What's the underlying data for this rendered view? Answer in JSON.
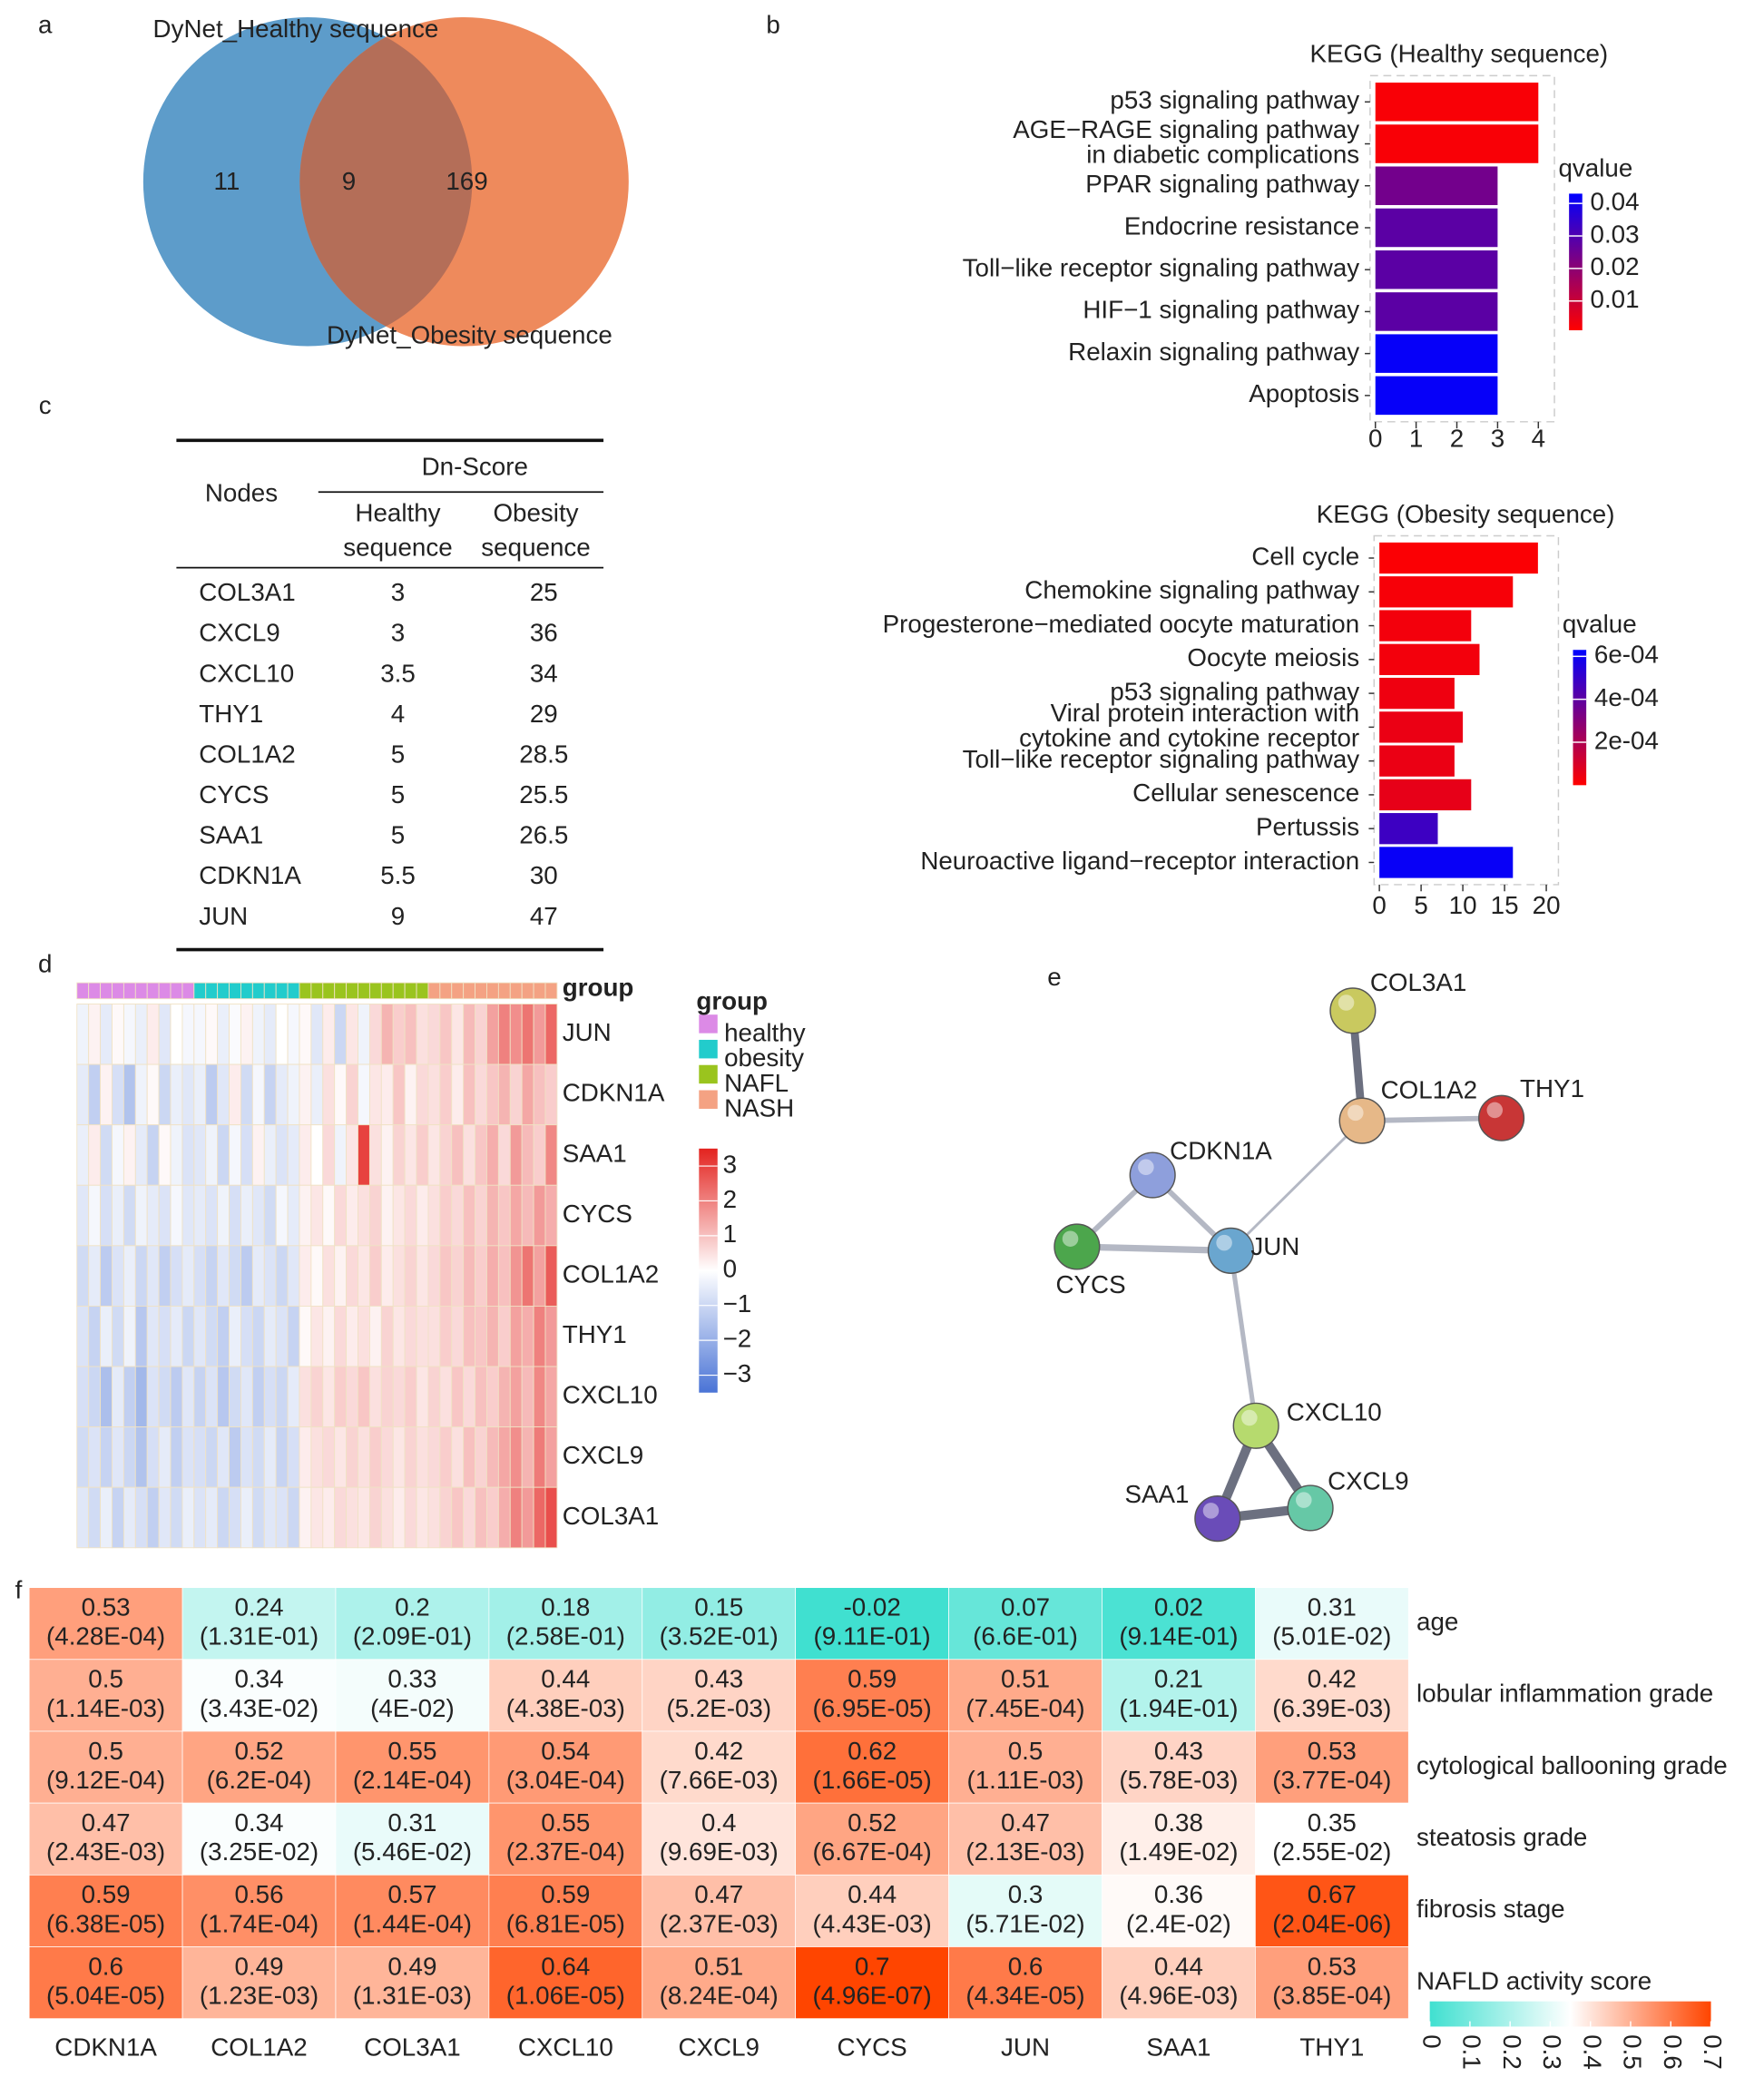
{
  "panel_labels": [
    "a",
    "b",
    "c",
    "d",
    "e",
    "f"
  ],
  "venn": {
    "sets": [
      {
        "name": "DyNet_Healthy sequence",
        "color": "#5d9cca"
      },
      {
        "name": "DyNet_Obesity sequence",
        "color": "#ee8a5c"
      }
    ],
    "overlap_color": "#b46e58",
    "only_first": 11,
    "both": 9,
    "only_second": 169
  },
  "table": {
    "header": {
      "nodes": "Nodes",
      "group": "Dn-Score",
      "columns": [
        [
          "Healthy",
          "sequence"
        ],
        [
          "Obesity",
          "sequence"
        ]
      ]
    },
    "rows": [
      [
        "COL3A1",
        3,
        25
      ],
      [
        "CXCL9",
        3,
        36
      ],
      [
        "CXCL10",
        3.5,
        34
      ],
      [
        "THY1",
        4,
        29
      ],
      [
        "COL1A2",
        5,
        28.5
      ],
      [
        "CYCS",
        5,
        25.5
      ],
      [
        "SAA1",
        5,
        26.5
      ],
      [
        "CDKN1A",
        5.5,
        30
      ],
      [
        "JUN",
        9,
        47
      ]
    ]
  },
  "network": {
    "nodes": [
      {
        "label": "COL3A1",
        "color": "#c9c95f"
      },
      {
        "label": "COL1A2",
        "color": "#e6b888"
      },
      {
        "label": "THY1",
        "color": "#c83636"
      },
      {
        "label": "CDKN1A",
        "color": "#8e9fdc"
      },
      {
        "label": "CYCS",
        "color": "#4ca64c"
      },
      {
        "label": "JUN",
        "color": "#6aa6cf"
      },
      {
        "label": "CXCL10",
        "color": "#b6da6e"
      },
      {
        "label": "SAA1",
        "color": "#6a4cb8"
      },
      {
        "label": "CXCL9",
        "color": "#66c8a6"
      }
    ]
  },
  "chart_data": [
    {
      "type": "bar",
      "title": "KEGG (Healthy sequence)",
      "categories": [
        "p53 signaling pathway",
        [
          "AGE−RAGE signaling pathway",
          "in diabetic complications"
        ],
        "PPAR signaling pathway",
        "Endocrine resistance",
        "Toll−like receptor signaling pathway",
        "HIF−1 signaling pathway",
        "Relaxin signaling pathway",
        "Apoptosis"
      ],
      "values": [
        4,
        4,
        3,
        3,
        3,
        3,
        3,
        3
      ],
      "qvalues": [
        0.002,
        0.002,
        0.024,
        0.028,
        0.028,
        0.028,
        0.042,
        0.042
      ],
      "xlim": [
        0,
        4.2
      ],
      "xticks": [
        0,
        1,
        2,
        3,
        4
      ],
      "colorbar": {
        "title": "qvalue",
        "lim": [
          0.001,
          0.043
        ],
        "ticks": [
          0.04,
          0.03,
          0.02,
          0.01
        ],
        "colors": [
          "#ff0000",
          "#0000ff"
        ]
      }
    },
    {
      "type": "bar",
      "title": "KEGG (Obesity sequence)",
      "categories": [
        "Cell cycle",
        "Chemokine signaling pathway",
        "Progesterone−mediated oocyte maturation",
        "Oocyte meiosis",
        "p53 signaling pathway",
        [
          "Viral protein interaction with",
          "cytokine and cytokine receptor"
        ],
        "Toll−like receptor signaling pathway",
        "Cellular senescence",
        "Pertussis",
        "Neuroactive ligand−receptor interaction"
      ],
      "values": [
        19,
        16,
        11,
        12,
        9,
        10,
        9,
        11,
        7,
        16
      ],
      "qvalues": [
        1e-05,
        2e-05,
        3e-05,
        3e-05,
        4e-05,
        5e-05,
        5e-05,
        6e-05,
        0.00048,
        0.00061
      ],
      "xlim": [
        0,
        20.5
      ],
      "xticks": [
        0,
        5,
        10,
        15,
        20
      ],
      "colorbar": {
        "title": "qvalue",
        "lim": [
          0,
          0.00063
        ],
        "ticks": [
          {
            "value": 0.0006,
            "label": "6e-04"
          },
          {
            "value": 0.0004,
            "label": "4e-04"
          },
          {
            "value": 0.0002,
            "label": "2e-04"
          }
        ],
        "colors": [
          "#ff0000",
          "#0000ff"
        ]
      }
    },
    {
      "type": "heatmap",
      "annotation_label": "group",
      "legend_title": "group",
      "rows": [
        "JUN",
        "CDKN1A",
        "SAA1",
        "CYCS",
        "COL1A2",
        "THY1",
        "CXCL10",
        "CXCL9",
        "COL3A1"
      ],
      "groups": [
        {
          "name": "healthy",
          "color": "#dc8ae6",
          "values": [
            [
              -0.3,
              0.2,
              -0.5,
              0.1,
              -0.2,
              -0.4,
              0.3,
              -0.6,
              0.0,
              -0.2
            ],
            [
              -0.5,
              -1.2,
              0.2,
              -0.8,
              -1.5,
              -0.3,
              0.1,
              -1.0,
              -0.4,
              -0.6
            ],
            [
              -0.4,
              0.3,
              -0.9,
              -0.2,
              0.2,
              -0.5,
              -1.1,
              0.1,
              -0.3,
              -0.7
            ],
            [
              -0.6,
              -0.2,
              -0.8,
              -0.4,
              -0.9,
              -0.3,
              -0.5,
              -0.7,
              -0.2,
              -0.6
            ],
            [
              -0.9,
              -0.5,
              -1.3,
              -0.7,
              -0.4,
              -1.0,
              -0.6,
              -1.2,
              -0.8,
              -0.5
            ],
            [
              -0.7,
              -1.1,
              -0.4,
              -0.9,
              -0.3,
              -1.4,
              -0.6,
              -0.8,
              -0.5,
              -1.0
            ],
            [
              -0.8,
              -1.0,
              -1.6,
              -0.5,
              -1.2,
              -1.8,
              -0.7,
              -0.9,
              -1.3,
              -0.6
            ],
            [
              -0.9,
              -0.7,
              -1.1,
              -0.6,
              -1.0,
              -1.5,
              -0.8,
              -0.5,
              -1.2,
              -0.7
            ],
            [
              -0.6,
              -0.9,
              -0.4,
              -1.1,
              -0.5,
              -0.8,
              -1.2,
              -0.6,
              -0.9,
              -0.4
            ]
          ]
        },
        {
          "name": "obesity",
          "color": "#22cccc",
          "values": [
            [
              -0.2,
              0.1,
              -0.4,
              -0.1,
              0.2,
              -0.3,
              -0.5,
              0.0,
              -0.2
            ],
            [
              -0.4,
              -1.3,
              -0.6,
              0.3,
              -0.9,
              -0.2,
              -1.1,
              -0.5,
              -0.3
            ],
            [
              -0.6,
              -0.3,
              -1.0,
              -0.2,
              -0.8,
              0.2,
              -0.4,
              -0.7,
              -0.5
            ],
            [
              -0.5,
              -0.7,
              -0.3,
              -0.8,
              -0.4,
              -0.6,
              -0.9,
              -0.2,
              -0.5
            ],
            [
              -0.8,
              -1.1,
              -0.6,
              -0.9,
              -1.3,
              -0.5,
              -0.7,
              -1.0,
              -0.6
            ],
            [
              -0.6,
              -0.9,
              -1.2,
              -0.4,
              -0.8,
              -1.0,
              -0.5,
              -0.7,
              -1.1
            ],
            [
              -1.1,
              -0.7,
              -1.4,
              -0.9,
              -0.6,
              -1.2,
              -0.8,
              -1.0,
              -0.5
            ],
            [
              -0.8,
              -1.0,
              -0.6,
              -1.3,
              -0.7,
              -0.9,
              -0.5,
              -1.1,
              -0.8
            ],
            [
              -0.7,
              -0.5,
              -1.0,
              -0.8,
              -0.4,
              -0.9,
              -0.6,
              -0.7,
              -1.0
            ]
          ]
        },
        {
          "name": "NAFL",
          "color": "#9ac41e",
          "values": [
            [
              0.1,
              -0.6,
              0.3,
              -1.0,
              0.4,
              -0.3,
              0.6,
              1.2,
              0.8,
              1.0,
              0.5
            ],
            [
              0.2,
              -0.4,
              0.5,
              0.1,
              0.7,
              -0.2,
              0.4,
              0.3,
              0.9,
              0.2,
              0.6
            ],
            [
              0.3,
              0.0,
              0.6,
              -0.3,
              0.4,
              3.0,
              0.5,
              0.2,
              0.7,
              0.4,
              0.8
            ],
            [
              0.2,
              0.4,
              0.1,
              0.6,
              0.3,
              0.5,
              0.7,
              0.2,
              0.4,
              0.6,
              0.3
            ],
            [
              0.3,
              0.1,
              0.5,
              0.2,
              0.6,
              0.4,
              0.8,
              0.3,
              0.5,
              0.7,
              0.4
            ],
            [
              0.1,
              0.4,
              0.2,
              0.6,
              0.3,
              0.5,
              0.2,
              0.7,
              0.4,
              0.6,
              0.5
            ],
            [
              0.5,
              0.7,
              0.4,
              0.8,
              0.6,
              0.9,
              0.5,
              0.7,
              0.6,
              0.8,
              0.4
            ],
            [
              0.3,
              0.5,
              0.6,
              0.4,
              0.7,
              0.5,
              0.8,
              0.6,
              0.4,
              0.7,
              0.5
            ],
            [
              0.2,
              0.4,
              0.3,
              0.6,
              0.5,
              0.4,
              0.7,
              0.5,
              0.3,
              0.6,
              0.4
            ]
          ]
        },
        {
          "name": "NASH",
          "color": "#f4a283",
          "values": [
            [
              0.6,
              0.9,
              0.4,
              1.1,
              0.7,
              1.5,
              2.0,
              1.8,
              2.2,
              1.6,
              2.4
            ],
            [
              0.5,
              0.8,
              0.3,
              1.0,
              0.6,
              0.9,
              1.2,
              0.7,
              1.4,
              1.0,
              0.8
            ],
            [
              0.4,
              0.7,
              1.0,
              0.5,
              0.9,
              1.3,
              0.6,
              1.6,
              1.1,
              0.8,
              1.9
            ],
            [
              0.5,
              0.8,
              0.6,
              1.0,
              0.7,
              1.2,
              0.9,
              1.4,
              1.1,
              1.6,
              1.3
            ],
            [
              0.6,
              0.9,
              0.7,
              1.1,
              0.8,
              1.3,
              1.0,
              1.7,
              2.2,
              1.5,
              2.6
            ],
            [
              0.5,
              0.8,
              0.6,
              1.0,
              0.9,
              1.2,
              0.8,
              1.5,
              1.3,
              2.0,
              1.6
            ],
            [
              0.7,
              0.5,
              0.9,
              0.6,
              1.0,
              0.8,
              1.2,
              1.5,
              1.1,
              1.9,
              1.4
            ],
            [
              0.6,
              0.8,
              0.5,
              1.0,
              0.7,
              1.1,
              1.4,
              1.8,
              1.2,
              2.1,
              1.5
            ],
            [
              0.5,
              0.7,
              0.9,
              0.6,
              1.0,
              0.8,
              1.3,
              2.0,
              1.6,
              2.4,
              2.8
            ]
          ]
        }
      ],
      "colorbar": {
        "lim": [
          -3.5,
          3.5
        ],
        "ticks": [
          3,
          2,
          1,
          0,
          {
            "value": -1,
            "label": "−1"
          },
          {
            "value": -2,
            "label": "−2"
          },
          {
            "value": -3,
            "label": "−3"
          }
        ],
        "colors": [
          "#4a74d6",
          "#ffffff",
          "#e3231f"
        ]
      }
    },
    {
      "type": "heatmap",
      "categories": [
        "CDKN1A",
        "COL1A2",
        "COL3A1",
        "CXCL10",
        "CXCL9",
        "CYCS",
        "JUN",
        "SAA1",
        "THY1"
      ],
      "rows": [
        "age",
        "lobular inflammation grade",
        "cytological ballooning grade",
        "steatosis grade",
        "fibrosis stage",
        "NAFLD activity score"
      ],
      "values": [
        [
          0.53,
          0.24,
          0.2,
          0.18,
          0.15,
          -0.02,
          0.07,
          0.02,
          0.31
        ],
        [
          0.5,
          0.34,
          0.33,
          0.44,
          0.43,
          0.59,
          0.51,
          0.21,
          0.42
        ],
        [
          0.5,
          0.52,
          0.55,
          0.54,
          0.42,
          0.62,
          0.5,
          0.43,
          0.53
        ],
        [
          0.47,
          0.34,
          0.31,
          0.55,
          0.4,
          0.52,
          0.47,
          0.38,
          0.35
        ],
        [
          0.59,
          0.56,
          0.57,
          0.59,
          0.47,
          0.44,
          0.3,
          0.36,
          0.67
        ],
        [
          0.6,
          0.49,
          0.49,
          0.64,
          0.51,
          0.7,
          0.6,
          0.44,
          0.53
        ]
      ],
      "pvalue_labels": [
        [
          "(4.28E-04)",
          "(1.31E-01)",
          "(2.09E-01)",
          "(2.58E-01)",
          "(3.52E-01)",
          "(9.11E-01)",
          "(6.6E-01)",
          "(9.14E-01)",
          "(5.01E-02)"
        ],
        [
          "(1.14E-03)",
          "(3.43E-02)",
          "(4E-02)",
          "(4.38E-03)",
          "(5.2E-03)",
          "(6.95E-05)",
          "(7.45E-04)",
          "(1.94E-01)",
          "(6.39E-03)"
        ],
        [
          "(9.12E-04)",
          "(6.2E-04)",
          "(2.14E-04)",
          "(3.04E-04)",
          "(7.66E-03)",
          "(1.66E-05)",
          "(1.11E-03)",
          "(5.78E-03)",
          "(3.77E-04)"
        ],
        [
          "(2.43E-03)",
          "(3.25E-02)",
          "(5.46E-02)",
          "(2.37E-04)",
          "(9.69E-03)",
          "(6.67E-04)",
          "(2.13E-03)",
          "(1.49E-02)",
          "(2.55E-02)"
        ],
        [
          "(6.38E-05)",
          "(1.74E-04)",
          "(1.44E-04)",
          "(6.81E-05)",
          "(2.37E-03)",
          "(4.43E-03)",
          "(5.71E-02)",
          "(2.4E-02)",
          "(2.04E-06)"
        ],
        [
          "(5.04E-05)",
          "(1.23E-03)",
          "(1.31E-03)",
          "(1.06E-05)",
          "(8.24E-04)",
          "(4.96E-07)",
          "(4.34E-05)",
          "(4.96E-03)",
          "(3.85E-04)"
        ]
      ],
      "colorbar": {
        "lim": [
          0,
          0.7
        ],
        "ticks": [
          0,
          0.1,
          0.2,
          0.3,
          0.4,
          0.5,
          0.6,
          0.7
        ],
        "colors": [
          "#40e0d0",
          "#ffffff",
          "#ff4500"
        ]
      }
    }
  ]
}
